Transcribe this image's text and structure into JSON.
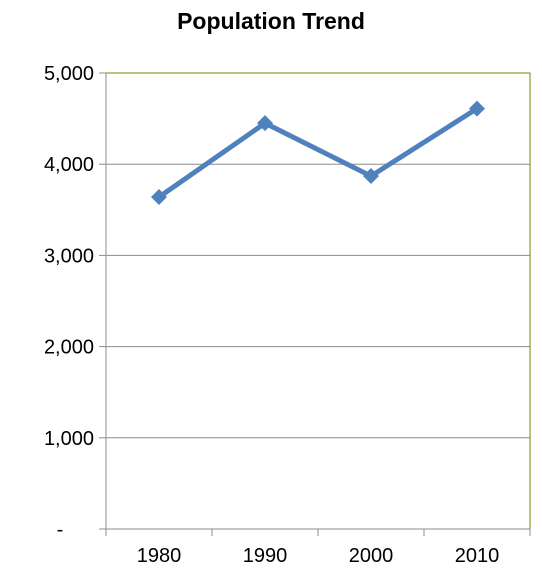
{
  "chart_data": {
    "type": "line",
    "title": "Population Trend",
    "xlabel": "",
    "ylabel": "",
    "categories": [
      "1980",
      "1990",
      "2000",
      "2010"
    ],
    "series": [
      {
        "values": [
          3640,
          4450,
          3870,
          4610
        ],
        "color": "#4f81bd",
        "marker": "diamond"
      }
    ],
    "ylim": [
      0,
      5000
    ],
    "yticks": [
      0,
      1000,
      2000,
      3000,
      4000,
      5000
    ],
    "ytick_labels": [
      "-",
      "1,000",
      "2,000",
      "3,000",
      "4,000",
      "5,000"
    ],
    "grid": true,
    "legend": "none",
    "colors": {
      "plot_border": "#808000",
      "gridline": "#8c8c8c",
      "axis": "#8c8c8c"
    }
  }
}
